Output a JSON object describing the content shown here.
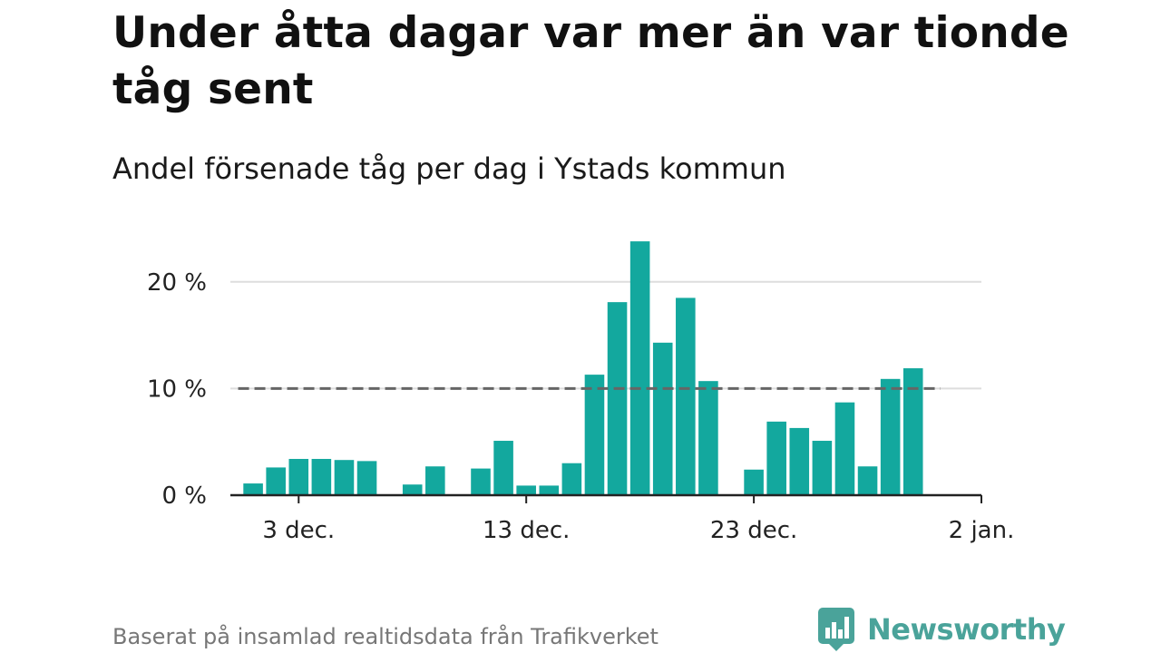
{
  "title": "Under åtta dagar var mer än var tionde tåg sent",
  "subtitle": "Andel försenade tåg per dag i Ystads kommun",
  "footer": "Baserat på insamlad realtidsdata från Trafikverket",
  "logo": {
    "text": "Newsworthy",
    "icon": "newsworthy-logo-icon",
    "color": "#4aa39a"
  },
  "colors": {
    "bar": "#13a89e",
    "grid": "#dddddd",
    "reference": "#666666",
    "axis": "#222222"
  },
  "chart_data": {
    "type": "bar",
    "title": "Under åtta dagar var mer än var tionde tåg sent",
    "subtitle": "Andel försenade tåg per dag i Ystads kommun",
    "x_unit": "date",
    "x": [
      "2019-12-01",
      "2019-12-02",
      "2019-12-03",
      "2019-12-04",
      "2019-12-05",
      "2019-12-06",
      "2019-12-07",
      "2019-12-08",
      "2019-12-09",
      "2019-12-10",
      "2019-12-11",
      "2019-12-12",
      "2019-12-13",
      "2019-12-14",
      "2019-12-15",
      "2019-12-16",
      "2019-12-17",
      "2019-12-18",
      "2019-12-19",
      "2019-12-20",
      "2019-12-21",
      "2019-12-22",
      "2019-12-23",
      "2019-12-24",
      "2019-12-25",
      "2019-12-26",
      "2019-12-27",
      "2019-12-28",
      "2019-12-29",
      "2019-12-30"
    ],
    "values": [
      1.1,
      2.6,
      3.4,
      3.4,
      3.3,
      3.2,
      null,
      1.0,
      2.7,
      null,
      2.5,
      5.1,
      0.9,
      0.9,
      3.0,
      11.3,
      18.1,
      23.8,
      14.3,
      18.5,
      10.7,
      null,
      2.4,
      6.9,
      6.3,
      5.1,
      8.7,
      2.7,
      10.9,
      11.9
    ],
    "reference_line": {
      "value": 10
    },
    "xticks": [
      {
        "date": "2019-12-03",
        "label": "3 dec."
      },
      {
        "date": "2019-12-13",
        "label": "13 dec."
      },
      {
        "date": "2019-12-23",
        "label": "23 dec."
      },
      {
        "date": "2020-01-02",
        "label": "2 jan."
      }
    ],
    "yticks": [
      {
        "value": 0,
        "label": "0 %"
      },
      {
        "value": 10,
        "label": "10 %"
      },
      {
        "value": 20,
        "label": "20 %"
      }
    ],
    "ylim": [
      0,
      25
    ],
    "xlim": [
      "2019-11-30",
      "2020-01-02"
    ],
    "grid": true,
    "legend": "none"
  }
}
